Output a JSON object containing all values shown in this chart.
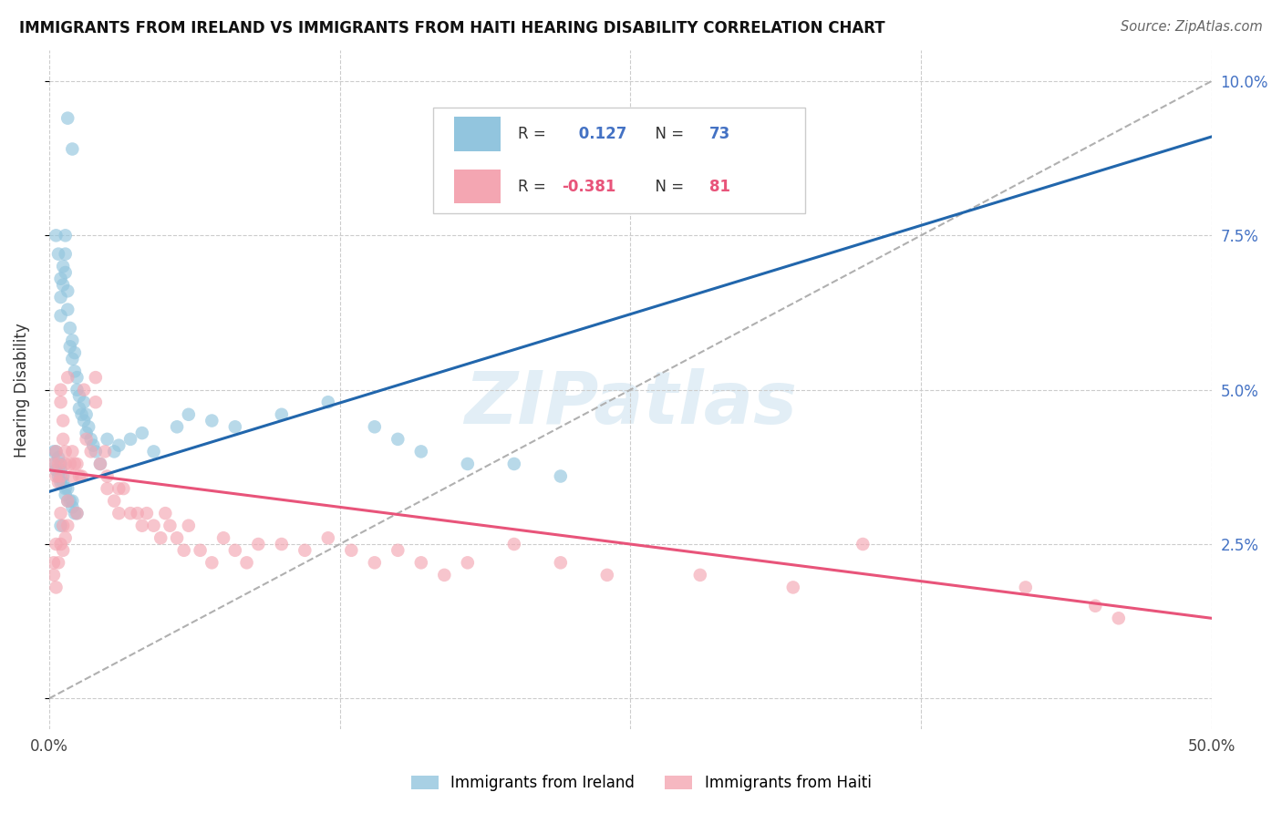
{
  "title": "IMMIGRANTS FROM IRELAND VS IMMIGRANTS FROM HAITI HEARING DISABILITY CORRELATION CHART",
  "source": "Source: ZipAtlas.com",
  "ylabel": "Hearing Disability",
  "xlim": [
    0.0,
    0.5
  ],
  "ylim": [
    -0.005,
    0.105
  ],
  "ireland_R": 0.127,
  "ireland_N": 73,
  "haiti_R": -0.381,
  "haiti_N": 81,
  "ireland_color": "#92c5de",
  "haiti_color": "#f4a6b2",
  "ireland_line_color": "#2166ac",
  "haiti_line_color": "#e8547a",
  "dash_line_color": "#b0b0b0",
  "background_color": "#ffffff",
  "grid_color": "#cccccc",
  "watermark": "ZIPatlas",
  "legend_ireland_label": "Immigrants from Ireland",
  "legend_haiti_label": "Immigrants from Haiti",
  "ireland_trend_intercept": 0.0335,
  "ireland_trend_slope": 0.115,
  "haiti_trend_intercept": 0.037,
  "haiti_trend_slope": -0.048,
  "dash_intercept": 0.0,
  "dash_slope": 0.2
}
